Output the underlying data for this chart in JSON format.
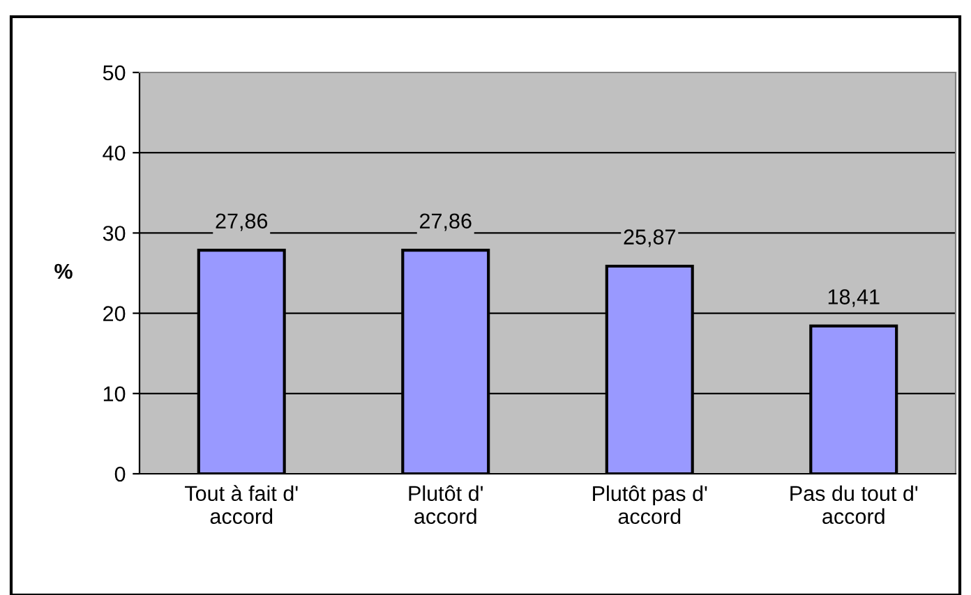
{
  "chart_data": {
    "type": "bar",
    "ylabel": "%",
    "categories": [
      "Tout à fait d'\naccord",
      "Plutôt d'\naccord",
      "Plutôt pas d'\naccord",
      "Pas du tout d'\naccord"
    ],
    "values": [
      27.86,
      27.86,
      25.87,
      18.41
    ],
    "value_labels": [
      "27,86",
      "27,86",
      "25,87",
      "18,41"
    ],
    "color": "#9999ff",
    "ylim": [
      0,
      50
    ],
    "yticks": [
      0,
      10,
      20,
      30,
      40,
      50
    ],
    "grid": "y"
  }
}
